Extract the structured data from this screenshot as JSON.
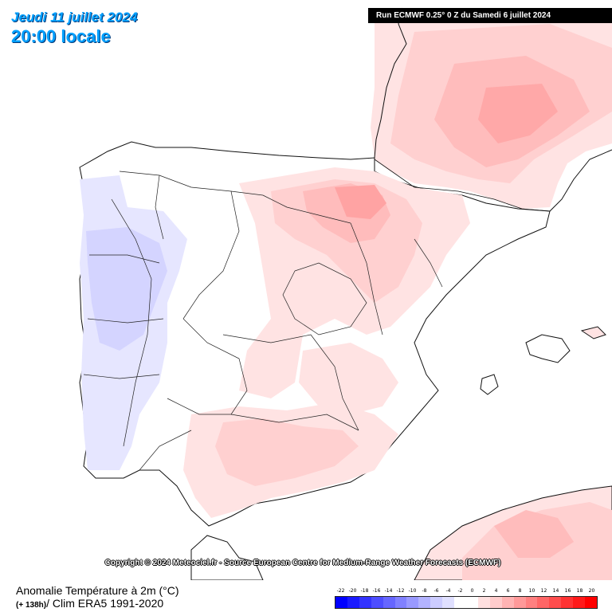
{
  "header": {
    "date": "Jeudi 11 juillet 2024",
    "time": "20:00 locale",
    "run": "Run ECMWF 0.25° 0 Z du Samedi 6 juillet 2024"
  },
  "copyright": "Copyright © 2024 Meteociel.fr - Source European Centre for Medium-Range Weather Forecasts (ECMWF)",
  "footer": {
    "title": "Anomalie Température à 2m (°C)",
    "lead": "(+ 138h)",
    "sub": "/ Clim ERA5 1991-2020"
  },
  "legend": {
    "labels": [
      "-22",
      "-20",
      "-18",
      "-16",
      "-14",
      "-12",
      "-10",
      "-8",
      "-6",
      "-4",
      "-2",
      "0",
      "2",
      "4",
      "6",
      "8",
      "10",
      "12",
      "14",
      "16",
      "18",
      "20"
    ],
    "colors": [
      "#0000ff",
      "#1a1aff",
      "#3333ff",
      "#4d4dff",
      "#6666ff",
      "#8080ff",
      "#9999ff",
      "#b3b3ff",
      "#ccccff",
      "#e0e0ff",
      "#ffffff",
      "#ffffff",
      "#ffe0e0",
      "#ffcccc",
      "#ffb3b3",
      "#ff9999",
      "#ff8080",
      "#ff6666",
      "#ff4d4d",
      "#ff3333",
      "#ff1a1a",
      "#ff0000"
    ]
  }
}
